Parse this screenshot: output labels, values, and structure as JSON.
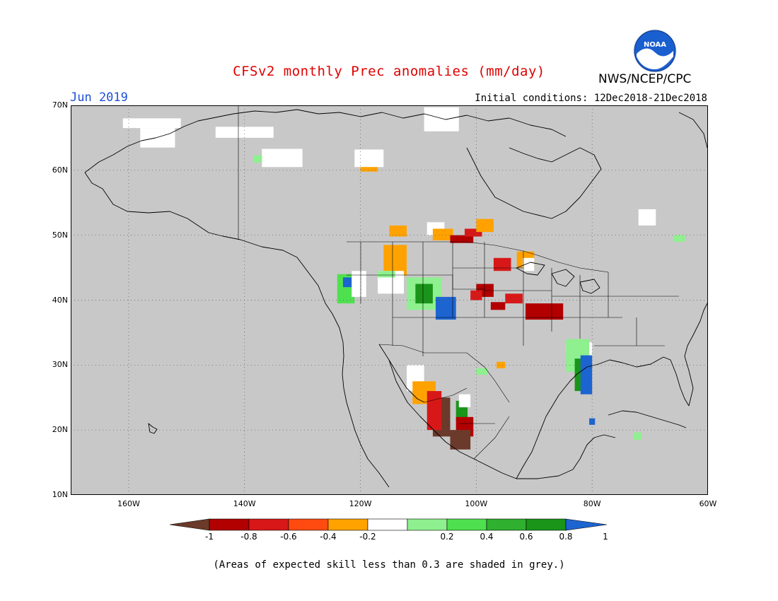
{
  "title": "CFSv2 monthly Prec anomalies (mm/day)",
  "valid_month": "Jun 2019",
  "initial_conditions": "Initial conditions: 12Dec2018-21Dec2018",
  "agency": "NWS/NCEP/CPC",
  "logo": {
    "text": "NOAA",
    "icon": "noaa-logo-icon",
    "colors": {
      "outer": "#1a5fd0",
      "inner": "#ffffff"
    }
  },
  "footnote": "(Areas of expected skill less than 0.3 are shaded in grey.)",
  "map": {
    "projection": "lat-lon",
    "lat_range": [
      10,
      70
    ],
    "lon_range": [
      -170,
      -60
    ],
    "lat_labels": [
      "70N",
      "60N",
      "50N",
      "40N",
      "30N",
      "20N",
      "10N"
    ],
    "lon_labels": [
      "160W",
      "140W",
      "120W",
      "100W",
      "80W",
      "60W"
    ],
    "background_color": "#c8c8c8",
    "grid": "dotted"
  },
  "colorbar": {
    "labels": [
      "-1",
      "-0.8",
      "-0.6",
      "-0.4",
      "-0.2",
      "0.2",
      "0.4",
      "0.6",
      "0.8",
      "1"
    ],
    "colors": [
      "#6b3a2a",
      "#b20000",
      "#d81818",
      "#ff4a10",
      "#ffa200",
      "#ffffff",
      "#8ef08e",
      "#4fe04f",
      "#2fb02f",
      "#1a951a",
      "#1c64d0"
    ]
  },
  "anomaly_regions": [
    {
      "name": "northern-canada-white-1",
      "lat": [
        66.5,
        68.0
      ],
      "lon": [
        -161,
        -151
      ],
      "level": "white"
    },
    {
      "name": "northern-canada-white-2",
      "lat": [
        63.5,
        66.5
      ],
      "lon": [
        -158,
        -152
      ],
      "level": "white"
    },
    {
      "name": "yukon-white",
      "lat": [
        65.0,
        66.7
      ],
      "lon": [
        -145,
        -135
      ],
      "level": "white"
    },
    {
      "name": "nwt-white",
      "lat": [
        60.5,
        63.3
      ],
      "lon": [
        -137,
        -130
      ],
      "level": "white"
    },
    {
      "name": "nwt-green",
      "lat": [
        61.2,
        62.3
      ],
      "lon": [
        -138.5,
        -137
      ],
      "level": "0.4"
    },
    {
      "name": "nwt-white-2",
      "lat": [
        60.5,
        63.2
      ],
      "lon": [
        -121,
        -116
      ],
      "level": "white"
    },
    {
      "name": "nwt-orange",
      "lat": [
        59.8,
        60.5
      ],
      "lon": [
        -120,
        -117
      ],
      "level": "-0.4"
    },
    {
      "name": "hudson-white",
      "lat": [
        66.0,
        69.7
      ],
      "lon": [
        -109,
        -103
      ],
      "level": "white"
    },
    {
      "name": "bc-orange",
      "lat": [
        49.8,
        51.5
      ],
      "lon": [
        -115,
        -112
      ],
      "level": "-0.4"
    },
    {
      "name": "sask-white",
      "lat": [
        50.0,
        52.0
      ],
      "lon": [
        -108.5,
        -105.5
      ],
      "level": "white"
    },
    {
      "name": "manitoba-orange",
      "lat": [
        49.2,
        51.0
      ],
      "lon": [
        -107.5,
        -104
      ],
      "level": "-0.4"
    },
    {
      "name": "manitoba-darkred",
      "lat": [
        48.8,
        50.0
      ],
      "lon": [
        -104.5,
        -100.5
      ],
      "level": "-0.8"
    },
    {
      "name": "ontario-red",
      "lat": [
        49.8,
        51.0
      ],
      "lon": [
        -102,
        -99
      ],
      "level": "-0.6"
    },
    {
      "name": "ontario-orange",
      "lat": [
        50.5,
        52.5
      ],
      "lon": [
        -100,
        -97
      ],
      "level": "-0.4"
    },
    {
      "name": "montana-orange",
      "lat": [
        43.8,
        48.5
      ],
      "lon": [
        -116,
        -112
      ],
      "level": "-0.4"
    },
    {
      "name": "oregon-green",
      "lat": [
        39.5,
        44.0
      ],
      "lon": [
        -124,
        -121
      ],
      "level": "0.6"
    },
    {
      "name": "oregon-blue",
      "lat": [
        42.0,
        43.5
      ],
      "lon": [
        -123,
        -121.5
      ],
      "level": "1"
    },
    {
      "name": "oregon-white",
      "lat": [
        40.5,
        44.5
      ],
      "lon": [
        -121.5,
        -119
      ],
      "level": "white"
    },
    {
      "name": "idaho-white",
      "lat": [
        41.0,
        44.5
      ],
      "lon": [
        -117,
        -112.5
      ],
      "level": "white"
    },
    {
      "name": "idaho-green",
      "lat": [
        43.5,
        44.5
      ],
      "lon": [
        -117,
        -114
      ],
      "level": "0.4"
    },
    {
      "name": "utah-green",
      "lat": [
        38.5,
        43.5
      ],
      "lon": [
        -112,
        -106
      ],
      "level": "0.4"
    },
    {
      "name": "utah-green-dark",
      "lat": [
        39.5,
        42.5
      ],
      "lon": [
        -110.5,
        -107.5
      ],
      "level": "0.8"
    },
    {
      "name": "colorado-blue",
      "lat": [
        37.0,
        40.5
      ],
      "lon": [
        -107,
        -103.5
      ],
      "level": "1"
    },
    {
      "name": "nebraska-darkred",
      "lat": [
        40.5,
        42.5
      ],
      "lon": [
        -100,
        -97
      ],
      "level": "-0.8"
    },
    {
      "name": "nebraska-red",
      "lat": [
        40.0,
        41.5
      ],
      "lon": [
        -101,
        -99
      ],
      "level": "-0.6"
    },
    {
      "name": "kansas-darkred",
      "lat": [
        38.5,
        39.7
      ],
      "lon": [
        -97.5,
        -95
      ],
      "level": "-0.8"
    },
    {
      "name": "iowa-red",
      "lat": [
        39.5,
        41.0
      ],
      "lon": [
        -95,
        -92
      ],
      "level": "-0.6"
    },
    {
      "name": "minnesota-red",
      "lat": [
        44.5,
        46.5
      ],
      "lon": [
        -97,
        -94
      ],
      "level": "-0.6"
    },
    {
      "name": "wisconsin-orange",
      "lat": [
        45.0,
        47.5
      ],
      "lon": [
        -93,
        -90
      ],
      "level": "-0.4"
    },
    {
      "name": "illinois-darkred",
      "lat": [
        37.0,
        39.5
      ],
      "lon": [
        -91.5,
        -85
      ],
      "level": "-0.8"
    },
    {
      "name": "georgia-white",
      "lat": [
        31.5,
        33.5
      ],
      "lon": [
        -84.5,
        -80
      ],
      "level": "white"
    },
    {
      "name": "georgia-green",
      "lat": [
        29.0,
        34.0
      ],
      "lon": [
        -84.5,
        -80.5
      ],
      "level": "0.4"
    },
    {
      "name": "florida-green",
      "lat": [
        26.0,
        31.0
      ],
      "lon": [
        -83,
        -80.5
      ],
      "level": "0.8"
    },
    {
      "name": "florida-blue",
      "lat": [
        25.5,
        31.5
      ],
      "lon": [
        -82,
        -80
      ],
      "level": "1"
    },
    {
      "name": "baja-white",
      "lat": [
        26.0,
        30.0
      ],
      "lon": [
        -112,
        -109
      ],
      "level": "white"
    },
    {
      "name": "baja-orange",
      "lat": [
        24.0,
        27.5
      ],
      "lon": [
        -111,
        -107
      ],
      "level": "-0.4"
    },
    {
      "name": "mexico-brown",
      "lat": [
        19.0,
        25.0
      ],
      "lon": [
        -107.5,
        -104.5
      ],
      "level": "-1"
    },
    {
      "name": "mexico-red",
      "lat": [
        20.0,
        26.0
      ],
      "lon": [
        -108.5,
        -106
      ],
      "level": "-0.6"
    },
    {
      "name": "mexico-green",
      "lat": [
        21.5,
        24.5
      ],
      "lon": [
        -103.5,
        -101.5
      ],
      "level": "0.8"
    },
    {
      "name": "mexico-red-2",
      "lat": [
        19.0,
        22.0
      ],
      "lon": [
        -103.5,
        -100.5
      ],
      "level": "-0.8"
    },
    {
      "name": "mexico-brown-2",
      "lat": [
        17.0,
        20.0
      ],
      "lon": [
        -104.5,
        -101
      ],
      "level": "-1"
    },
    {
      "name": "texas-white",
      "lat": [
        23.5,
        25.5
      ],
      "lon": [
        -103,
        -101
      ],
      "level": "white"
    },
    {
      "name": "texas-green",
      "lat": [
        28.5,
        29.5
      ],
      "lon": [
        -100,
        -98
      ],
      "level": "0.4"
    },
    {
      "name": "texas-orange",
      "lat": [
        29.5,
        30.5
      ],
      "lon": [
        -96.5,
        -95
      ],
      "level": "-0.4"
    },
    {
      "name": "cuba-blue",
      "lat": [
        20.8,
        21.8
      ],
      "lon": [
        -80.5,
        -79.5
      ],
      "level": "1"
    },
    {
      "name": "hispaniola-green",
      "lat": [
        18.5,
        19.6
      ],
      "lon": [
        -72.8,
        -71.5
      ],
      "level": "0.4"
    },
    {
      "name": "quebec-white",
      "lat": [
        51.5,
        54.0
      ],
      "lon": [
        -72,
        -69
      ],
      "level": "white"
    },
    {
      "name": "labrador-green",
      "lat": [
        49.0,
        50.0
      ],
      "lon": [
        -66,
        -64
      ],
      "level": "0.4"
    },
    {
      "name": "michigan-white",
      "lat": [
        44.5,
        46.5
      ],
      "lon": [
        -92,
        -90
      ],
      "level": "white"
    }
  ]
}
